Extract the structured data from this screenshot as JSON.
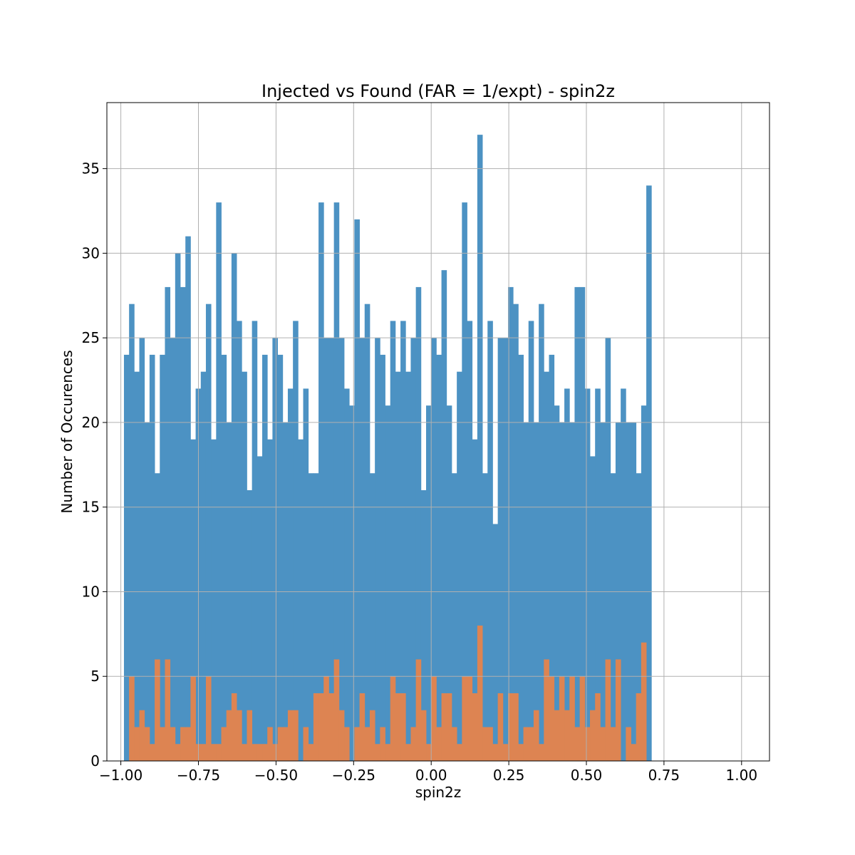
{
  "chart_data": {
    "type": "bar",
    "title": "Injected vs Found (FAR = 1/expt) - spin2z",
    "xlabel": "spin2z",
    "ylabel": "Number of Occurences",
    "xlim": [
      -1.045,
      1.09
    ],
    "ylim": [
      0,
      38.9
    ],
    "x_ticks": [
      -1.0,
      -0.75,
      -0.5,
      -0.25,
      0.0,
      0.25,
      0.5,
      0.75,
      1.0
    ],
    "x_tick_labels": [
      "−1.00",
      "−0.75",
      "−0.50",
      "−0.25",
      "0.00",
      "0.25",
      "0.50",
      "0.75",
      "1.00"
    ],
    "y_ticks": [
      0,
      5,
      10,
      15,
      20,
      25,
      30,
      35
    ],
    "y_tick_labels": [
      "0",
      "5",
      "10",
      "15",
      "20",
      "25",
      "30",
      "35"
    ],
    "grid": true,
    "bin_start": -0.99,
    "bin_width": 0.0165,
    "series": [
      {
        "color": "#4c92c3",
        "values": [
          24,
          27,
          23,
          25,
          20,
          24,
          17,
          24,
          28,
          25,
          30,
          28,
          31,
          19,
          22,
          23,
          27,
          19,
          33,
          24,
          20,
          30,
          26,
          23,
          16,
          26,
          18,
          24,
          19,
          25,
          24,
          20,
          22,
          26,
          19,
          22,
          17,
          17,
          33,
          25,
          25,
          33,
          25,
          22,
          21,
          32,
          25,
          27,
          17,
          25,
          24,
          21,
          26,
          23,
          26,
          23,
          25,
          28,
          16,
          21,
          25,
          24,
          29,
          21,
          17,
          23,
          33,
          26,
          19,
          37,
          17,
          26,
          14,
          25,
          25,
          28,
          27,
          24,
          20,
          26,
          20,
          27,
          23,
          24,
          21,
          20,
          22,
          20,
          28,
          28,
          22,
          18,
          22,
          20,
          25,
          17,
          20,
          22,
          20,
          20,
          17,
          21,
          34
        ]
      },
      {
        "color": "#dd8452",
        "values": [
          0,
          5,
          2,
          3,
          2,
          1,
          6,
          2,
          6,
          2,
          1,
          2,
          2,
          5,
          1,
          1,
          5,
          1,
          1,
          2,
          3,
          4,
          3,
          1,
          3,
          1,
          1,
          1,
          2,
          1,
          2,
          2,
          3,
          3,
          0,
          2,
          1,
          4,
          4,
          5,
          4,
          6,
          3,
          2,
          0,
          2,
          4,
          2,
          3,
          1,
          2,
          1,
          5,
          4,
          4,
          1,
          2,
          6,
          3,
          1,
          5,
          2,
          4,
          4,
          2,
          1,
          5,
          5,
          4,
          8,
          2,
          2,
          1,
          4,
          1,
          4,
          4,
          1,
          2,
          2,
          3,
          1,
          6,
          5,
          3,
          5,
          3,
          5,
          2,
          5,
          2,
          3,
          4,
          2,
          6,
          2,
          6,
          0,
          2,
          1,
          4,
          7,
          0
        ]
      }
    ]
  }
}
